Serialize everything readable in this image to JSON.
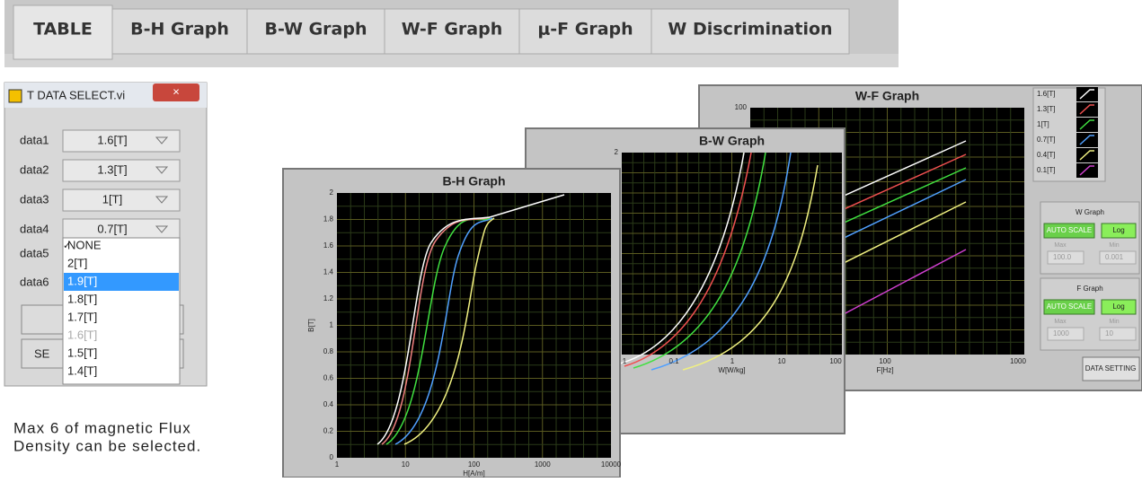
{
  "tabs": [
    "TABLE",
    "B-H Graph",
    "B-W Graph",
    "W-F Graph",
    "μ-F Graph",
    "W Discrimination"
  ],
  "dialog": {
    "title": "T DATA SELECT.vi",
    "rows": [
      {
        "label": "data1",
        "value": "1.6[T]"
      },
      {
        "label": "data2",
        "value": "1.3[T]"
      },
      {
        "label": "data3",
        "value": "1[T]"
      },
      {
        "label": "data4",
        "value": "0.7[T]"
      },
      {
        "label": "data5"
      },
      {
        "label": "data6"
      }
    ],
    "dropdown": [
      "NONE",
      "2[T]",
      "1.9[T]",
      "1.8[T]",
      "1.7[T]",
      "1.6[T]",
      "1.5[T]",
      "1.4[T]"
    ],
    "button": "SE"
  },
  "caption": [
    "Max 6 of magnetic Flux",
    "Density can be selected."
  ],
  "windows": [
    {
      "title": "W-F Graph",
      "yticks": [
        "100"
      ],
      "xticks": [
        "100",
        "1000"
      ],
      "xlabel": "F[Hz]",
      "legend": [
        "1.6[T]",
        "1.3[T]",
        "1[T]",
        "0.7[T]",
        "0.4[T]",
        "0.1[T]"
      ],
      "panels": [
        {
          "title": "W Graph",
          "auto": "AUTO SCALE",
          "log": "Log",
          "max": "Max",
          "min": "Min",
          "max_value": "100.0",
          "min_value": "0.001"
        },
        {
          "title": "F Graph",
          "auto": "AUTO SCALE",
          "log": "Log",
          "max": "Max",
          "min": "Min",
          "max_value": "1000",
          "min_value": "10"
        }
      ],
      "button": "DATA SETTING"
    },
    {
      "title": "B-W Graph",
      "yticks": [
        "2"
      ],
      "xticks": [
        "1",
        "0.1",
        "1",
        "10",
        "100"
      ],
      "xlabel": "W[W/kg]"
    },
    {
      "title": "B-H Graph",
      "yticks": [
        "2",
        "1.8",
        "1.6",
        "1.4",
        "1.2",
        "1",
        "0.8",
        "0.6",
        "0.4",
        "0.2",
        "0"
      ],
      "xticks": [
        "1",
        "10",
        "100",
        "1000",
        "10000"
      ],
      "xlabel": "H[A/m]",
      "ylabel": "B[T]"
    }
  ]
}
